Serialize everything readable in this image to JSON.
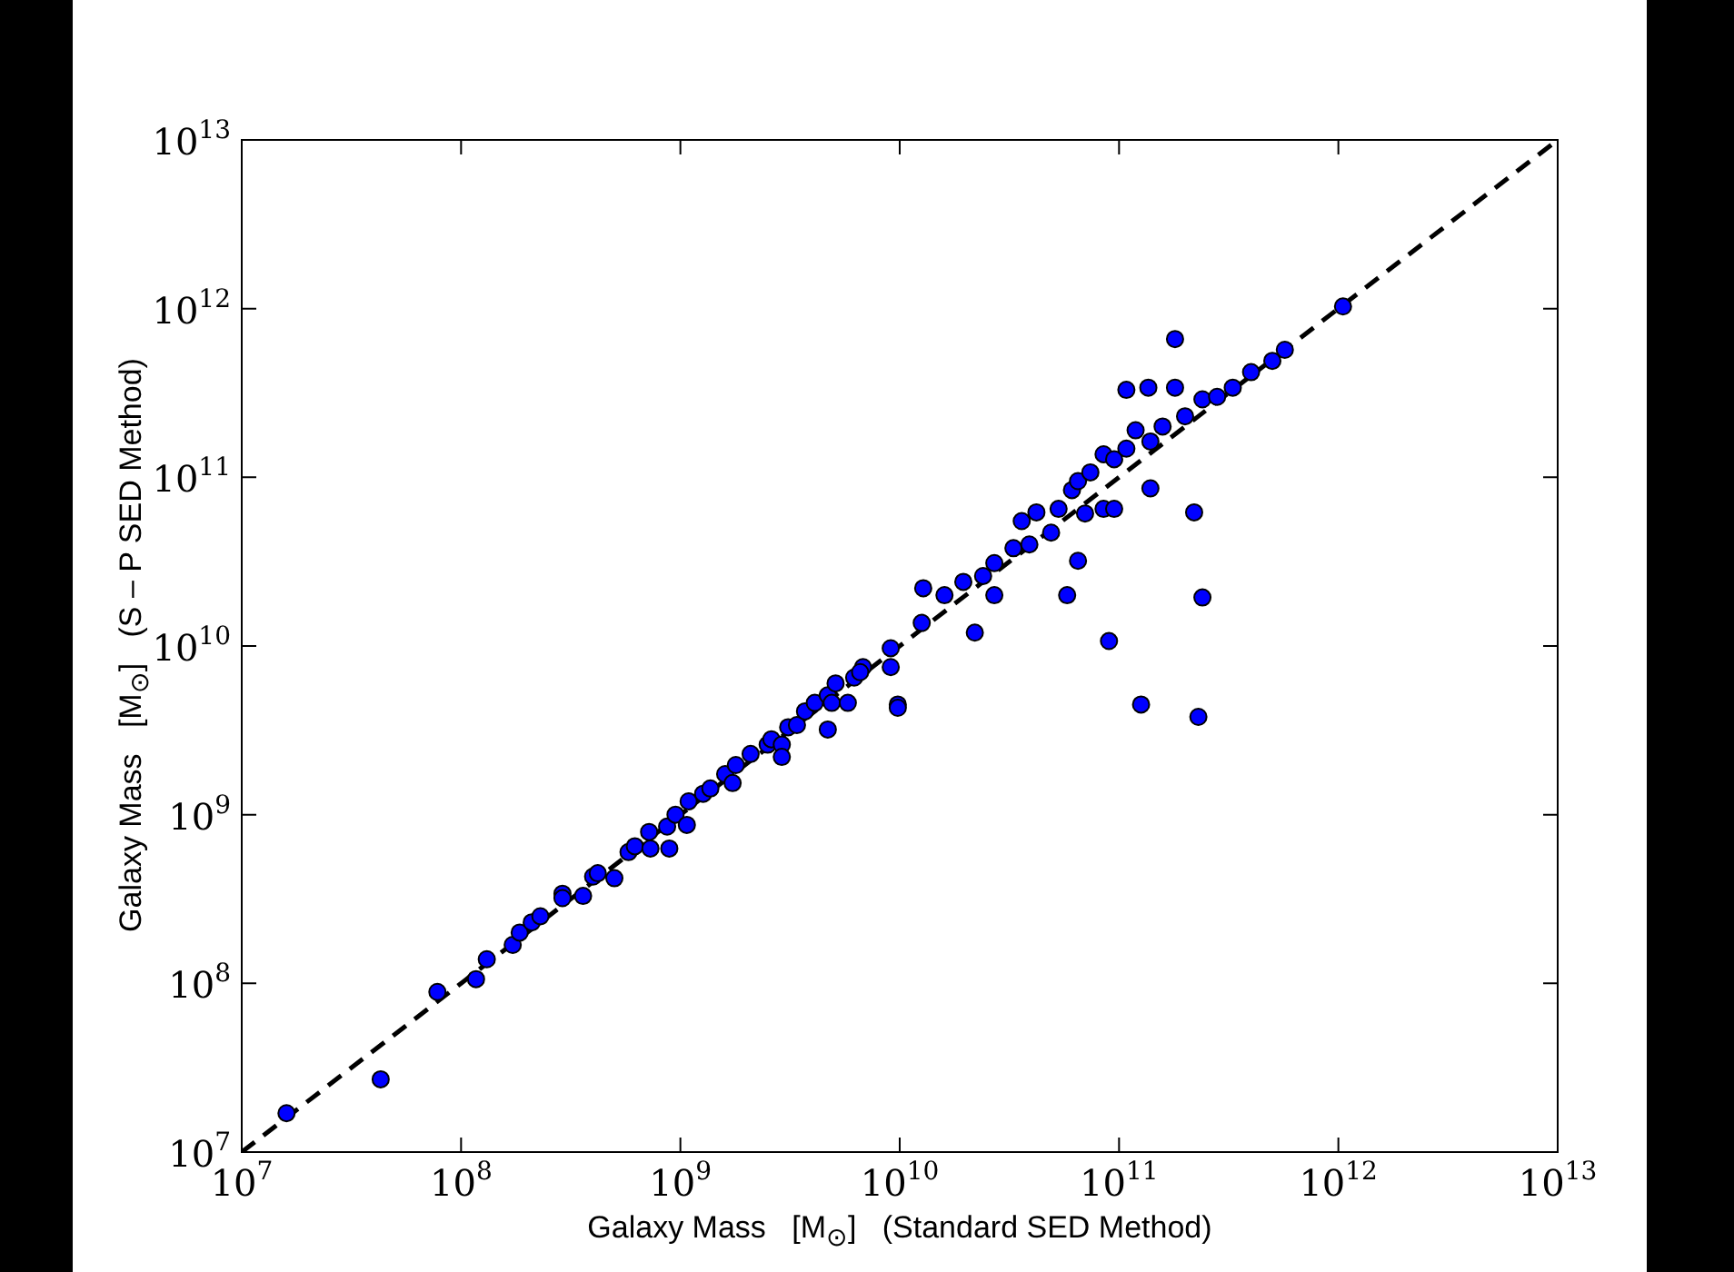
{
  "chart_data": {
    "type": "scatter",
    "xlabel": "Galaxy Mass   [M$_{⊙}$]   (Standard SED Method)",
    "ylabel": "Galaxy Mass   [M$_{⊙}$]   (S – P SED Method)",
    "log": "xy",
    "grid": false,
    "legend": false,
    "marker": "circle",
    "xlim": [
      10000000.0,
      10000000000000.0
    ],
    "ylim": [
      10000000.0,
      10000000000000.0
    ],
    "xticks": [
      {
        "value": 10000000.0,
        "label": "10$^{7}$"
      },
      {
        "value": 100000000.0,
        "label": "10$^{8}$"
      },
      {
        "value": 1000000000.0,
        "label": "10$^{9}$"
      },
      {
        "value": 10000000000.0,
        "label": "10$^{10}$"
      },
      {
        "value": 100000000000.0,
        "label": "10$^{11}$"
      },
      {
        "value": 1000000000000.0,
        "label": "10$^{12}$"
      },
      {
        "value": 10000000000000.0,
        "label": "10$^{13}$"
      }
    ],
    "yticks": [
      {
        "value": 10000000.0,
        "label": "10$^{7}$"
      },
      {
        "value": 100000000.0,
        "label": "10$^{8}$"
      },
      {
        "value": 1000000000.0,
        "label": "10$^{9}$"
      },
      {
        "value": 10000000000.0,
        "label": "10$^{10}$"
      },
      {
        "value": 100000000000.0,
        "label": "10$^{11}$"
      },
      {
        "value": 1000000000000.0,
        "label": "10$^{12}$"
      },
      {
        "value": 10000000000000.0,
        "label": "10$^{13}$"
      }
    ],
    "series": [
      {
        "color": "#0000ff",
        "x": [
          16000000.0,
          43000000.0,
          78000000.0,
          117000000.0,
          131000000.0,
          172000000.0,
          185000000.0,
          210000000.0,
          230000000.0,
          290000000.0,
          290000000.0,
          360000000.0,
          400000000.0,
          420000000.0,
          500000000.0,
          580000000.0,
          620000000.0,
          720000000.0,
          730000000.0,
          870000000.0,
          890000000.0,
          950000000.0,
          1070000000.0,
          1090000000.0,
          1270000000.0,
          1370000000.0,
          1600000000.0,
          1730000000.0,
          1790000000.0,
          2090000000.0,
          2500000000.0,
          2600000000.0,
          2900000000.0,
          2900000000.0,
          3100000000.0,
          3400000000.0,
          3700000000.0,
          4100000000.0,
          4700000000.0,
          4700000000.0,
          4900000000.0,
          5100000000.0,
          5800000000.0,
          6200000000.0,
          6800000000.0,
          9100000000.0,
          9800000000.0,
          9800000000.0,
          6600000000.0,
          9100000000.0,
          12600000000.0,
          12800000000.0,
          22000000000.0,
          16000000000.0,
          19500000000.0,
          27000000000.0,
          24000000000.0,
          27000000000.0,
          33000000000.0,
          36000000000.0,
          39000000000.0,
          42000000000.0,
          49000000000.0,
          53000000000.0,
          58000000000.0,
          61000000000.0,
          65000000000.0,
          65000000000.0,
          70000000000.0,
          74000000000.0,
          85000000000.0,
          85000000000.0,
          90000000000.0,
          95000000000.0,
          95000000000.0,
          108000000000.0,
          108000000000.0,
          119000000000.0,
          126000000000.0,
          136000000000.0,
          139000000000.0,
          139000000000.0,
          158000000000.0,
          180000000000.0,
          180000000000.0,
          200000000000.0,
          220000000000.0,
          230000000000.0,
          240000000000.0,
          240000000000.0,
          280000000000.0,
          330000000000.0,
          400000000000.0,
          500000000000.0,
          570000000000.0,
          1050000000000.0
        ],
        "values": [
          17000000.0,
          27000000.0,
          89000000.0,
          106000000.0,
          139000000.0,
          169000000.0,
          200000000.0,
          230000000.0,
          250000000.0,
          340000000.0,
          320000000.0,
          330000000.0,
          430000000.0,
          450000000.0,
          420000000.0,
          600000000.0,
          650000000.0,
          790000000.0,
          630000000.0,
          850000000.0,
          630000000.0,
          1000000000.0,
          870000000.0,
          1200000000.0,
          1330000000.0,
          1430000000.0,
          1740000000.0,
          1540000000.0,
          1970000000.0,
          2290000000.0,
          2600000000.0,
          2800000000.0,
          2600000000.0,
          2200000000.0,
          3300000000.0,
          3400000000.0,
          4100000000.0,
          4600000000.0,
          3200000000.0,
          5100000000.0,
          4600000000.0,
          6000000000.0,
          4600000000.0,
          6500000000.0,
          7500000000.0,
          7500000000.0,
          4500000000.0,
          4300000000.0,
          7000000000.0,
          9700000000.0,
          13700000000.0,
          22000000000.0,
          12000000000.0,
          20000000000.0,
          24000000000.0,
          20000000000.0,
          26000000000.0,
          31000000000.0,
          38000000000.0,
          55000000000.0,
          40000000000.0,
          62000000000.0,
          47000000000.0,
          65000000000.0,
          20000000000.0,
          84000000000.0,
          32000000000.0,
          95000000000.0,
          61000000000.0,
          107000000000.0,
          65000000000.0,
          137000000000.0,
          10700000000.0,
          65000000000.0,
          128000000000.0,
          330000000000.0,
          148000000000.0,
          190000000000.0,
          4500000000.0,
          340000000000.0,
          86000000000.0,
          163000000000.0,
          200000000000.0,
          660000000000.0,
          340000000000.0,
          230000000000.0,
          62000000000.0,
          3800000000.0,
          19400000000.0,
          290000000000.0,
          300000000000.0,
          340000000000.0,
          420000000000.0,
          490000000000.0,
          570000000000.0,
          1030000000000.0
        ]
      },
      {
        "type": "line",
        "color": "#000000",
        "line_style": "dashed",
        "marker": "none",
        "x": [
          10000000.0,
          10000000000000.0
        ],
        "values": [
          10000000.0,
          10000000000000.0
        ]
      }
    ]
  }
}
